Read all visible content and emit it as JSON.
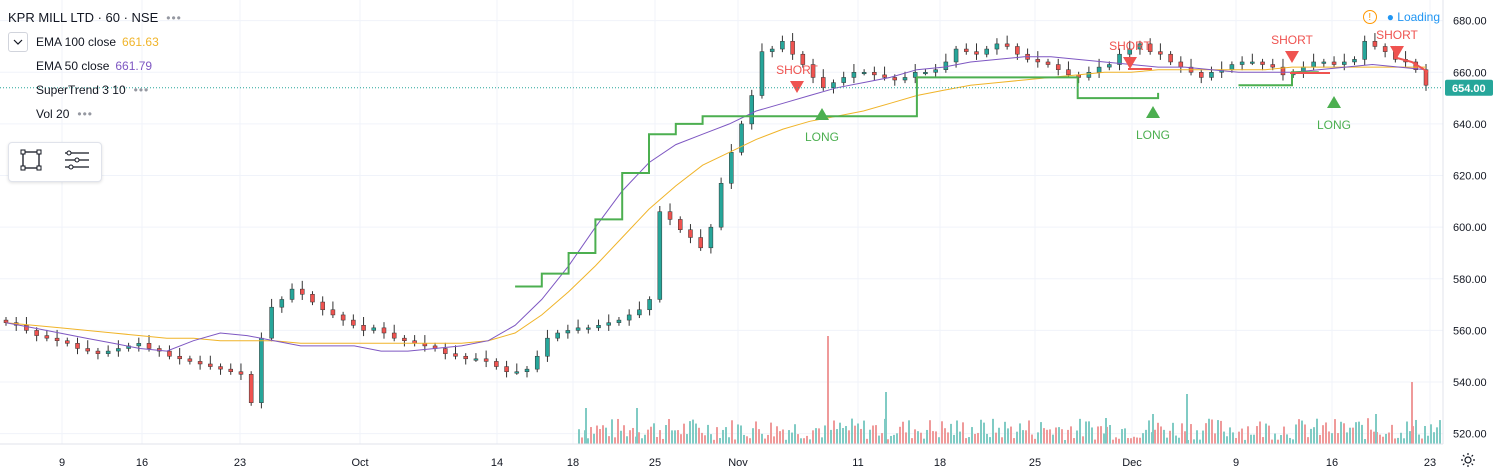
{
  "header": {
    "title": "KPR MILL LTD · 60 · NSE",
    "indicators": [
      {
        "label": "EMA 100 close",
        "value": "661.63",
        "color": "#f0b429"
      },
      {
        "label": "EMA 50 close",
        "value": "661.79",
        "color": "#7e57c2"
      },
      {
        "label": "SuperTrend 3 10",
        "value": "",
        "color": "#4caf50"
      },
      {
        "label": "Vol 20",
        "value": "",
        "color": "#9598a1"
      }
    ],
    "more": "•••"
  },
  "status": {
    "warning": "!",
    "loading": "● Loading"
  },
  "price_axis": {
    "ticks": [
      "680.00",
      "660.00",
      "640.00",
      "620.00",
      "600.00",
      "580.00",
      "560.00",
      "540.00",
      "520.00"
    ],
    "last_price_label": "654.00"
  },
  "time_axis": {
    "ticks": [
      "9",
      "16",
      "23",
      "Oct",
      "14",
      "18",
      "25",
      "Nov",
      "11",
      "18",
      "25",
      "Dec",
      "9",
      "16",
      "23"
    ]
  },
  "chart_data": {
    "type": "line",
    "title": "KPR MILL LTD · 60 · NSE",
    "xlabel": "",
    "ylabel": "",
    "ylim": [
      516,
      688
    ],
    "y_ticks": [
      520,
      540,
      560,
      580,
      600,
      620,
      640,
      660,
      680
    ],
    "last_price": 654.0,
    "grid": true,
    "x_tick_labels": [
      "9",
      "16",
      "23",
      "Oct",
      "14",
      "18",
      "25",
      "Nov",
      "11",
      "18",
      "25",
      "Dec",
      "9",
      "16",
      "23"
    ],
    "series": [
      {
        "name": "EMA 100 close",
        "color": "#f0b429",
        "values": [
          563,
          562,
          561,
          560,
          559,
          558,
          557,
          557,
          556,
          556,
          556,
          555,
          555,
          555,
          555,
          555,
          555,
          555,
          556,
          559,
          566,
          575,
          585,
          596,
          607,
          616,
          624,
          629,
          634,
          638,
          641,
          643,
          645,
          648,
          651,
          653,
          655,
          656,
          657,
          658,
          659,
          660,
          660,
          661,
          661,
          661,
          661,
          661,
          662,
          662,
          662,
          662,
          662,
          662
        ]
      },
      {
        "name": "EMA 50 close",
        "color": "#7e57c2",
        "values": [
          563,
          561,
          559,
          557,
          555,
          553,
          552,
          556,
          559,
          558,
          556,
          554,
          554,
          554,
          552,
          552,
          553,
          554,
          556,
          562,
          572,
          585,
          600,
          614,
          625,
          632,
          636,
          640,
          645,
          648,
          651,
          654,
          656,
          658,
          661,
          662,
          664,
          665,
          666,
          666,
          665,
          664,
          663,
          662,
          662,
          661,
          660,
          660,
          660,
          661,
          662,
          663,
          662,
          661
        ]
      },
      {
        "name": "SuperTrend 3 10",
        "color": "#4caf50",
        "values": [
          null,
          null,
          null,
          null,
          null,
          null,
          null,
          null,
          null,
          null,
          null,
          null,
          null,
          null,
          null,
          null,
          null,
          null,
          null,
          577,
          582,
          590,
          603,
          621,
          636,
          640,
          643,
          643,
          643,
          643,
          643,
          643,
          643,
          643,
          658,
          658,
          658,
          658,
          658,
          658,
          650,
          650,
          650,
          652,
          null,
          null,
          655,
          655,
          660,
          660,
          null,
          null,
          null,
          null
        ]
      }
    ],
    "candles_close": [
      563,
      562,
      560,
      558,
      557,
      556,
      555,
      553,
      552,
      551,
      552,
      553,
      554,
      555,
      553,
      552,
      550,
      549,
      548,
      547,
      546,
      545,
      544,
      543,
      532,
      557,
      569,
      572,
      576,
      574,
      571,
      568,
      566,
      564,
      562,
      560,
      561,
      559,
      557,
      556,
      555,
      554,
      553,
      551,
      550,
      549,
      549,
      548,
      546,
      544,
      544,
      545,
      550,
      557,
      559,
      560,
      561,
      561,
      562,
      563,
      564,
      566,
      568,
      572,
      606,
      603,
      599,
      596,
      592,
      600,
      617,
      629,
      640,
      651,
      668,
      669,
      672,
      667,
      663,
      658,
      654,
      656,
      658,
      660,
      660,
      659,
      658,
      657,
      658,
      660,
      660,
      661,
      664,
      669,
      668,
      667,
      669,
      671,
      670,
      667,
      665,
      664,
      663,
      661,
      659,
      658,
      660,
      662,
      663,
      667,
      669,
      671,
      668,
      667,
      664,
      662,
      660,
      658,
      660,
      661,
      663,
      664,
      664,
      663,
      662,
      659,
      660,
      662,
      664,
      664,
      663,
      664,
      665,
      672,
      670,
      668,
      665,
      664,
      661,
      655
    ]
  },
  "signals": [
    {
      "type": "SHORT",
      "arrow": "▼",
      "label": "SHORT"
    },
    {
      "type": "LONG",
      "arrow": "▲",
      "label": "LONG"
    },
    {
      "type": "SHORT",
      "arrow": "▼",
      "label": "SHORT"
    },
    {
      "type": "LONG",
      "arrow": "▲",
      "label": "LONG"
    },
    {
      "type": "SHORT",
      "arrow": "▼",
      "label": "SHORT"
    },
    {
      "type": "LONG",
      "arrow": "▲",
      "label": "LONG"
    },
    {
      "type": "SHORT",
      "arrow": "▼",
      "label": "SHORT"
    }
  ],
  "colors": {
    "up": "#26a69a",
    "down": "#ef5350",
    "grid": "#f0f3fa",
    "short": "#ef5350",
    "long": "#4caf50",
    "price_line": "#26a69a",
    "price_label_bg": "#26a69a",
    "vol_up": "#80cbc4",
    "vol_down": "#ef9a9a"
  },
  "icons": [
    "chevron-down-icon",
    "rectangle-tool-icon",
    "menu-lines-icon",
    "gear-icon"
  ]
}
